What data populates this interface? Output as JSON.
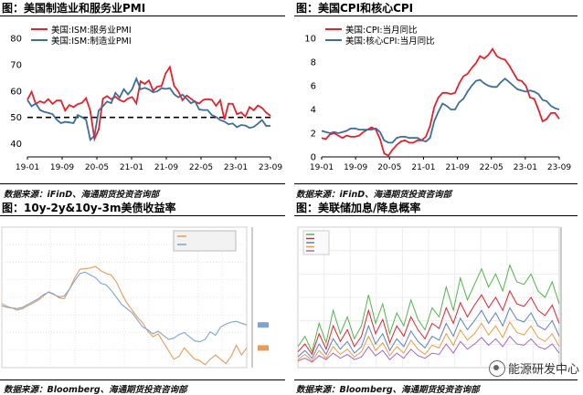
{
  "panels": [
    {
      "title": "图：美国制造业和服务业PMI",
      "source": "数据来源：iFinD、海通期货投资咨询部",
      "chart_data": {
        "type": "line",
        "x_ticks": [
          "19-01",
          "19-09",
          "20-05",
          "21-01",
          "21-09",
          "22-05",
          "23-01",
          "23-09"
        ],
        "y_ticks": [
          "40",
          "50",
          "60",
          "70",
          "80"
        ],
        "ylim": [
          35,
          80
        ],
        "reference_line": 50,
        "series": [
          {
            "name": "美国:ISM:服务业PMI",
            "color": "#e8202a",
            "values": [
              56.7,
              59.7,
              55.1,
              56.1,
              55.5,
              56.9,
              55.1,
              56.4,
              56.4,
              52.6,
              54.7,
              53.9,
              55.0,
              55.5,
              57.3,
              52.5,
              41.8,
              45.4,
              57.1,
              58.1,
              56.9,
              57.8,
              56.6,
              55.9,
              57.2,
              57.7,
              55.3,
              63.7,
              62.7,
              64.0,
              60.1,
              61.7,
              61.9,
              66.7,
              69.1,
              62.0,
              59.9,
              56.5,
              58.3,
              57.1,
              55.9,
              55.3,
              56.7,
              56.9,
              56.7,
              54.4,
              56.5,
              49.2,
              55.2,
              55.1,
              51.2,
              51.9,
              50.3,
              53.9,
              52.7,
              54.5,
              53.6,
              51.8,
              50.6
            ]
          },
          {
            "name": "美国:ISM:制造业PMI",
            "color": "#3c6e9c",
            "values": [
              56.6,
              54.2,
              55.3,
              52.8,
              52.1,
              51.7,
              51.2,
              49.1,
              47.8,
              48.3,
              48.1,
              47.8,
              50.9,
              50.1,
              49.1,
              41.5,
              43.1,
              52.6,
              54.2,
              56.0,
              55.4,
              59.3,
              57.5,
              60.7,
              58.7,
              60.8,
              64.7,
              60.7,
              61.2,
              60.6,
              59.5,
              59.9,
              61.1,
              60.8,
              61.1,
              58.8,
              57.6,
              58.6,
              57.1,
              55.4,
              56.1,
              53.0,
              52.8,
              52.8,
              50.9,
              50.2,
              49.0,
              48.4,
              47.4,
              47.7,
              46.3,
              47.1,
              46.9,
              46.0,
              46.4,
              47.6,
              49.0,
              46.7,
              46.8
            ]
          }
        ]
      }
    },
    {
      "title": "图：美国CPI和核心CPI",
      "source": "数据来源：iFinD、海通期货投资咨询部",
      "chart_data": {
        "type": "line",
        "x_ticks": [
          "19-01",
          "19-09",
          "20-05",
          "21-01",
          "21-09",
          "22-05",
          "23-01",
          "23-09"
        ],
        "y_ticks": [
          "0",
          "2",
          "4",
          "6",
          "8",
          "10"
        ],
        "ylim": [
          0,
          10
        ],
        "series": [
          {
            "name": "美国:CPI:当月同比",
            "color": "#e8202a",
            "values": [
              1.6,
              1.5,
              1.9,
              2.0,
              1.8,
              1.6,
              1.8,
              1.7,
              1.7,
              1.8,
              2.1,
              2.3,
              2.5,
              2.3,
              1.5,
              0.3,
              0.1,
              0.6,
              1.0,
              1.3,
              1.4,
              1.2,
              1.2,
              1.4,
              1.4,
              1.7,
              2.6,
              4.2,
              5.0,
              5.4,
              5.4,
              5.3,
              5.4,
              6.2,
              6.8,
              7.0,
              7.5,
              7.9,
              8.5,
              8.3,
              8.6,
              9.1,
              8.5,
              8.3,
              8.2,
              7.7,
              7.1,
              6.5,
              6.4,
              6.0,
              5.0,
              4.9,
              4.0,
              3.0,
              3.2,
              3.7,
              3.7,
              3.2
            ]
          },
          {
            "name": "美国:核心CPI:当月同比",
            "color": "#3c6e9c",
            "values": [
              2.2,
              2.1,
              2.0,
              2.1,
              2.0,
              2.1,
              2.2,
              2.4,
              2.4,
              2.3,
              2.3,
              2.3,
              2.3,
              2.4,
              2.1,
              1.4,
              1.2,
              1.2,
              1.6,
              1.7,
              1.7,
              1.6,
              1.6,
              1.6,
              1.4,
              1.3,
              1.6,
              3.0,
              3.8,
              4.5,
              4.3,
              4.0,
              4.0,
              4.6,
              4.9,
              5.5,
              6.0,
              6.4,
              6.5,
              6.2,
              6.0,
              5.9,
              5.9,
              6.3,
              6.6,
              6.3,
              6.0,
              5.7,
              5.6,
              5.5,
              5.6,
              5.5,
              5.3,
              4.8,
              4.7,
              4.3,
              4.1,
              4.0
            ]
          }
        ]
      }
    },
    {
      "title": "图：10y-2y&10y-3m美债收益率",
      "source": "数据来源：Bloomberg、海通期货投资咨询部",
      "chart_data": {
        "type": "line",
        "ylim": [
          -2,
          3
        ],
        "series": [
          {
            "color": "#e99a55",
            "values": [
              0.28,
              0.18,
              0.12,
              0.05,
              0.1,
              0.2,
              0.3,
              0.4,
              0.55,
              0.7,
              0.62,
              0.48,
              0.45,
              0.8,
              1.2,
              1.5,
              1.52,
              1.55,
              1.6,
              1.45,
              1.35,
              1.3,
              1.05,
              0.65,
              0.3,
              0.05,
              -0.2,
              -0.4,
              -0.7,
              -0.9,
              -0.8,
              -1.1,
              -1.4,
              -1.7,
              -1.6,
              -1.3,
              -1.5,
              -1.7,
              -1.75,
              -1.9,
              -1.7,
              -1.55,
              -1.7,
              -1.85,
              -1.6,
              -1.2,
              -1.55,
              -1.3
            ]
          },
          {
            "color": "#7fa3d0",
            "values": [
              0.2,
              0.15,
              0.12,
              0.1,
              0.15,
              0.25,
              0.35,
              0.45,
              0.6,
              0.68,
              0.6,
              0.52,
              0.55,
              0.8,
              1.1,
              1.35,
              1.4,
              1.3,
              1.2,
              1.0,
              0.95,
              0.75,
              0.5,
              0.25,
              0.1,
              -0.05,
              -0.3,
              -0.55,
              -0.65,
              -0.8,
              -0.7,
              -0.85,
              -1.0,
              -0.95,
              -0.82,
              -0.75,
              -0.9,
              -1.05,
              -1.08,
              -1.0,
              -0.72,
              -0.85,
              -0.55,
              -0.45,
              -0.38,
              -0.35,
              -0.42,
              -0.48
            ]
          }
        ]
      }
    },
    {
      "title": "图：美联储加息/降息概率",
      "source": "数据来源：Bloomberg、海通期货投资咨询部",
      "chart_data": {
        "type": "line",
        "ylim": [
          0,
          100
        ],
        "series": [
          {
            "color": "#52b44a",
            "values": [
              12,
              20,
              8,
              30,
              15,
              40,
              22,
              35,
              18,
              28,
              52,
              30,
              45,
              22,
              38,
              28,
              48,
              33,
              25,
              42,
              35,
              58,
              40,
              65,
              48,
              60,
              72,
              58,
              68,
              55,
              75,
              62,
              60,
              68,
              55,
              50,
              62,
              45
            ]
          },
          {
            "color": "#e8202a",
            "values": [
              8,
              14,
              6,
              22,
              10,
              28,
              16,
              25,
              12,
              20,
              40,
              22,
              33,
              15,
              28,
              20,
              35,
              25,
              18,
              30,
              26,
              42,
              30,
              46,
              35,
              44,
              52,
              42,
              50,
              40,
              55,
              45,
              43,
              50,
              40,
              36,
              44,
              30
            ]
          },
          {
            "color": "#5b7fc7",
            "values": [
              4,
              9,
              3,
              14,
              6,
              18,
              10,
              16,
              7,
              12,
              28,
              14,
              22,
              9,
              18,
              12,
              24,
              16,
              11,
              20,
              17,
              30,
              20,
              34,
              25,
              32,
              40,
              30,
              38,
              28,
              42,
              33,
              31,
              38,
              28,
              25,
              32,
              20
            ]
          },
          {
            "color": "#f19a3e",
            "values": [
              2,
              6,
              1,
              9,
              3,
              12,
              6,
              10,
              4,
              8,
              20,
              9,
              15,
              5,
              12,
              7,
              17,
              10,
              6,
              13,
              11,
              22,
              13,
              25,
              17,
              22,
              30,
              21,
              28,
              19,
              31,
              23,
              21,
              28,
              19,
              16,
              22,
              12
            ]
          },
          {
            "color": "#a666c8",
            "values": [
              1,
              3,
              0,
              5,
              2,
              7,
              3,
              6,
              2,
              4,
              12,
              5,
              9,
              2,
              7,
              3,
              10,
              5,
              3,
              7,
              6,
              14,
              7,
              16,
              10,
              14,
              19,
              13,
              18,
              12,
              20,
              14,
              13,
              18,
              12,
              10,
              14,
              7
            ]
          }
        ]
      }
    }
  ],
  "watermark": "能源研发中心"
}
